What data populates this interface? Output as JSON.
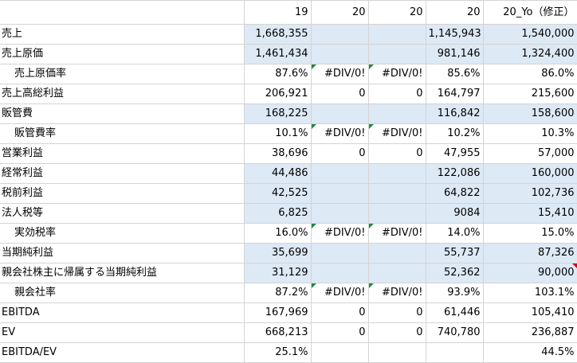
{
  "header": [
    "",
    "19",
    "20",
    "20",
    "20",
    "20_Yo（修正）"
  ],
  "rows": [
    {
      "label": "売上",
      "indent": false,
      "shaded": true,
      "cells": [
        "1,668,355",
        "",
        "",
        "1,145,943",
        "1,540,000"
      ]
    },
    {
      "label": "売上原価",
      "indent": false,
      "shaded": true,
      "cells": [
        "1,461,434",
        "",
        "",
        "981,146",
        "1,324,400"
      ]
    },
    {
      "label": "売上原価率",
      "indent": true,
      "shaded": false,
      "cells": [
        "87.6%",
        "#DIV/0!",
        "#DIV/0!",
        "85.6%",
        "86.0%"
      ]
    },
    {
      "label": "売上高総利益",
      "indent": false,
      "shaded": false,
      "cells": [
        "206,921",
        "0",
        "0",
        "164,797",
        "215,600"
      ]
    },
    {
      "label": "販管費",
      "indent": false,
      "shaded": true,
      "cells": [
        "168,225",
        "",
        "",
        "116,842",
        "158,600"
      ]
    },
    {
      "label": "販管費率",
      "indent": true,
      "shaded": false,
      "cells": [
        "10.1%",
        "#DIV/0!",
        "#DIV/0!",
        "10.2%",
        "10.3%"
      ]
    },
    {
      "label": "営業利益",
      "indent": false,
      "shaded": false,
      "cells": [
        "38,696",
        "0",
        "0",
        "47,955",
        "57,000"
      ]
    },
    {
      "label": "経常利益",
      "indent": false,
      "shaded": true,
      "cells": [
        "44,486",
        "",
        "",
        "122,086",
        "160,000"
      ]
    },
    {
      "label": "税前利益",
      "indent": false,
      "shaded": true,
      "cells": [
        "42,525",
        "",
        "",
        "64,822",
        "102,736"
      ]
    },
    {
      "label": "法人税等",
      "indent": false,
      "shaded": true,
      "cells": [
        "6,825",
        "",
        "",
        "9084",
        "15,410"
      ]
    },
    {
      "label": "実効税率",
      "indent": true,
      "shaded": false,
      "cells": [
        "16.0%",
        "#DIV/0!",
        "#DIV/0!",
        "14.0%",
        "15.0%"
      ]
    },
    {
      "label": "当期純利益",
      "indent": false,
      "shaded": true,
      "cells": [
        "35,699",
        "",
        "",
        "55,737",
        "87,326"
      ]
    },
    {
      "label": "親会社株主に帰属する当期純利益",
      "indent": false,
      "shaded": true,
      "cells": [
        "31,129",
        "",
        "",
        "52,362",
        "90,000"
      ]
    },
    {
      "label": "親会社率",
      "indent": true,
      "shaded": false,
      "cells": [
        "87.2%",
        "#DIV/0!",
        "#DIV/0!",
        "93.9%",
        "103.1%"
      ]
    },
    {
      "label": "EBITDA",
      "indent": false,
      "shaded": false,
      "cells": [
        "167,969",
        "0",
        "0",
        "61,446",
        "105,410"
      ]
    },
    {
      "label": "EV",
      "indent": false,
      "shaded": false,
      "cells": [
        "668,213",
        "0",
        "0",
        "740,780",
        "236,887"
      ]
    },
    {
      "label": "EBITDA/EV",
      "indent": false,
      "shaded": false,
      "cells": [
        "25.1%",
        "",
        "",
        "",
        "44.5%"
      ]
    }
  ],
  "markers": {
    "error_indicator_color": "#1f8a3b",
    "comment_indicator_color": "#d0021b",
    "shade_color": "#dde9f5"
  }
}
